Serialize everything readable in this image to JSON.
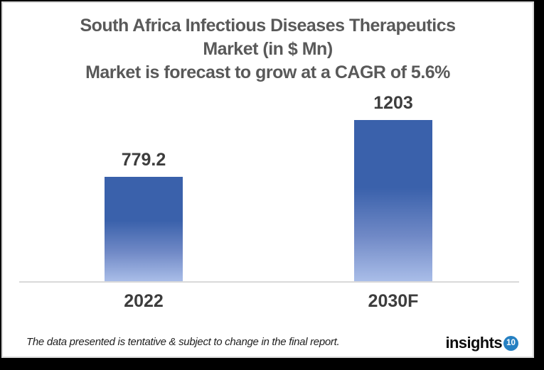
{
  "title": {
    "line1": "South Africa Infectious Diseases Therapeutics",
    "line2": "Market (in $ Mn)",
    "line3": "Market is forecast to grow at a CAGR of 5.6%"
  },
  "chart_data": {
    "type": "bar",
    "title": "South Africa Infectious Diseases Therapeutics Market (in $ Mn)",
    "subtitle": "Market is forecast to grow at a CAGR of 5.6%",
    "cagr": "5.6%",
    "categories": [
      "2022",
      "2030F"
    ],
    "values": [
      779.2,
      1203
    ],
    "value_labels": [
      "779.2",
      "1203"
    ],
    "xlabel": "",
    "ylabel": "",
    "ylim": [
      0,
      1400
    ],
    "grid": false,
    "legend": false,
    "bar_gradient_top": "#3a61ab",
    "bar_gradient_mid": "#7089c6",
    "bar_gradient_bottom": "#a9bde8",
    "axis_line_color": "#d9d9d9",
    "title_color": "#595959",
    "label_color": "#3d3d3d"
  },
  "footer": {
    "disclaimer": "The data presented is tentative & subject to change in the final report.",
    "logo": {
      "text": "insights",
      "badge": "10",
      "badge_color": "#2680c2",
      "text_color": "#0d0d0d"
    }
  }
}
